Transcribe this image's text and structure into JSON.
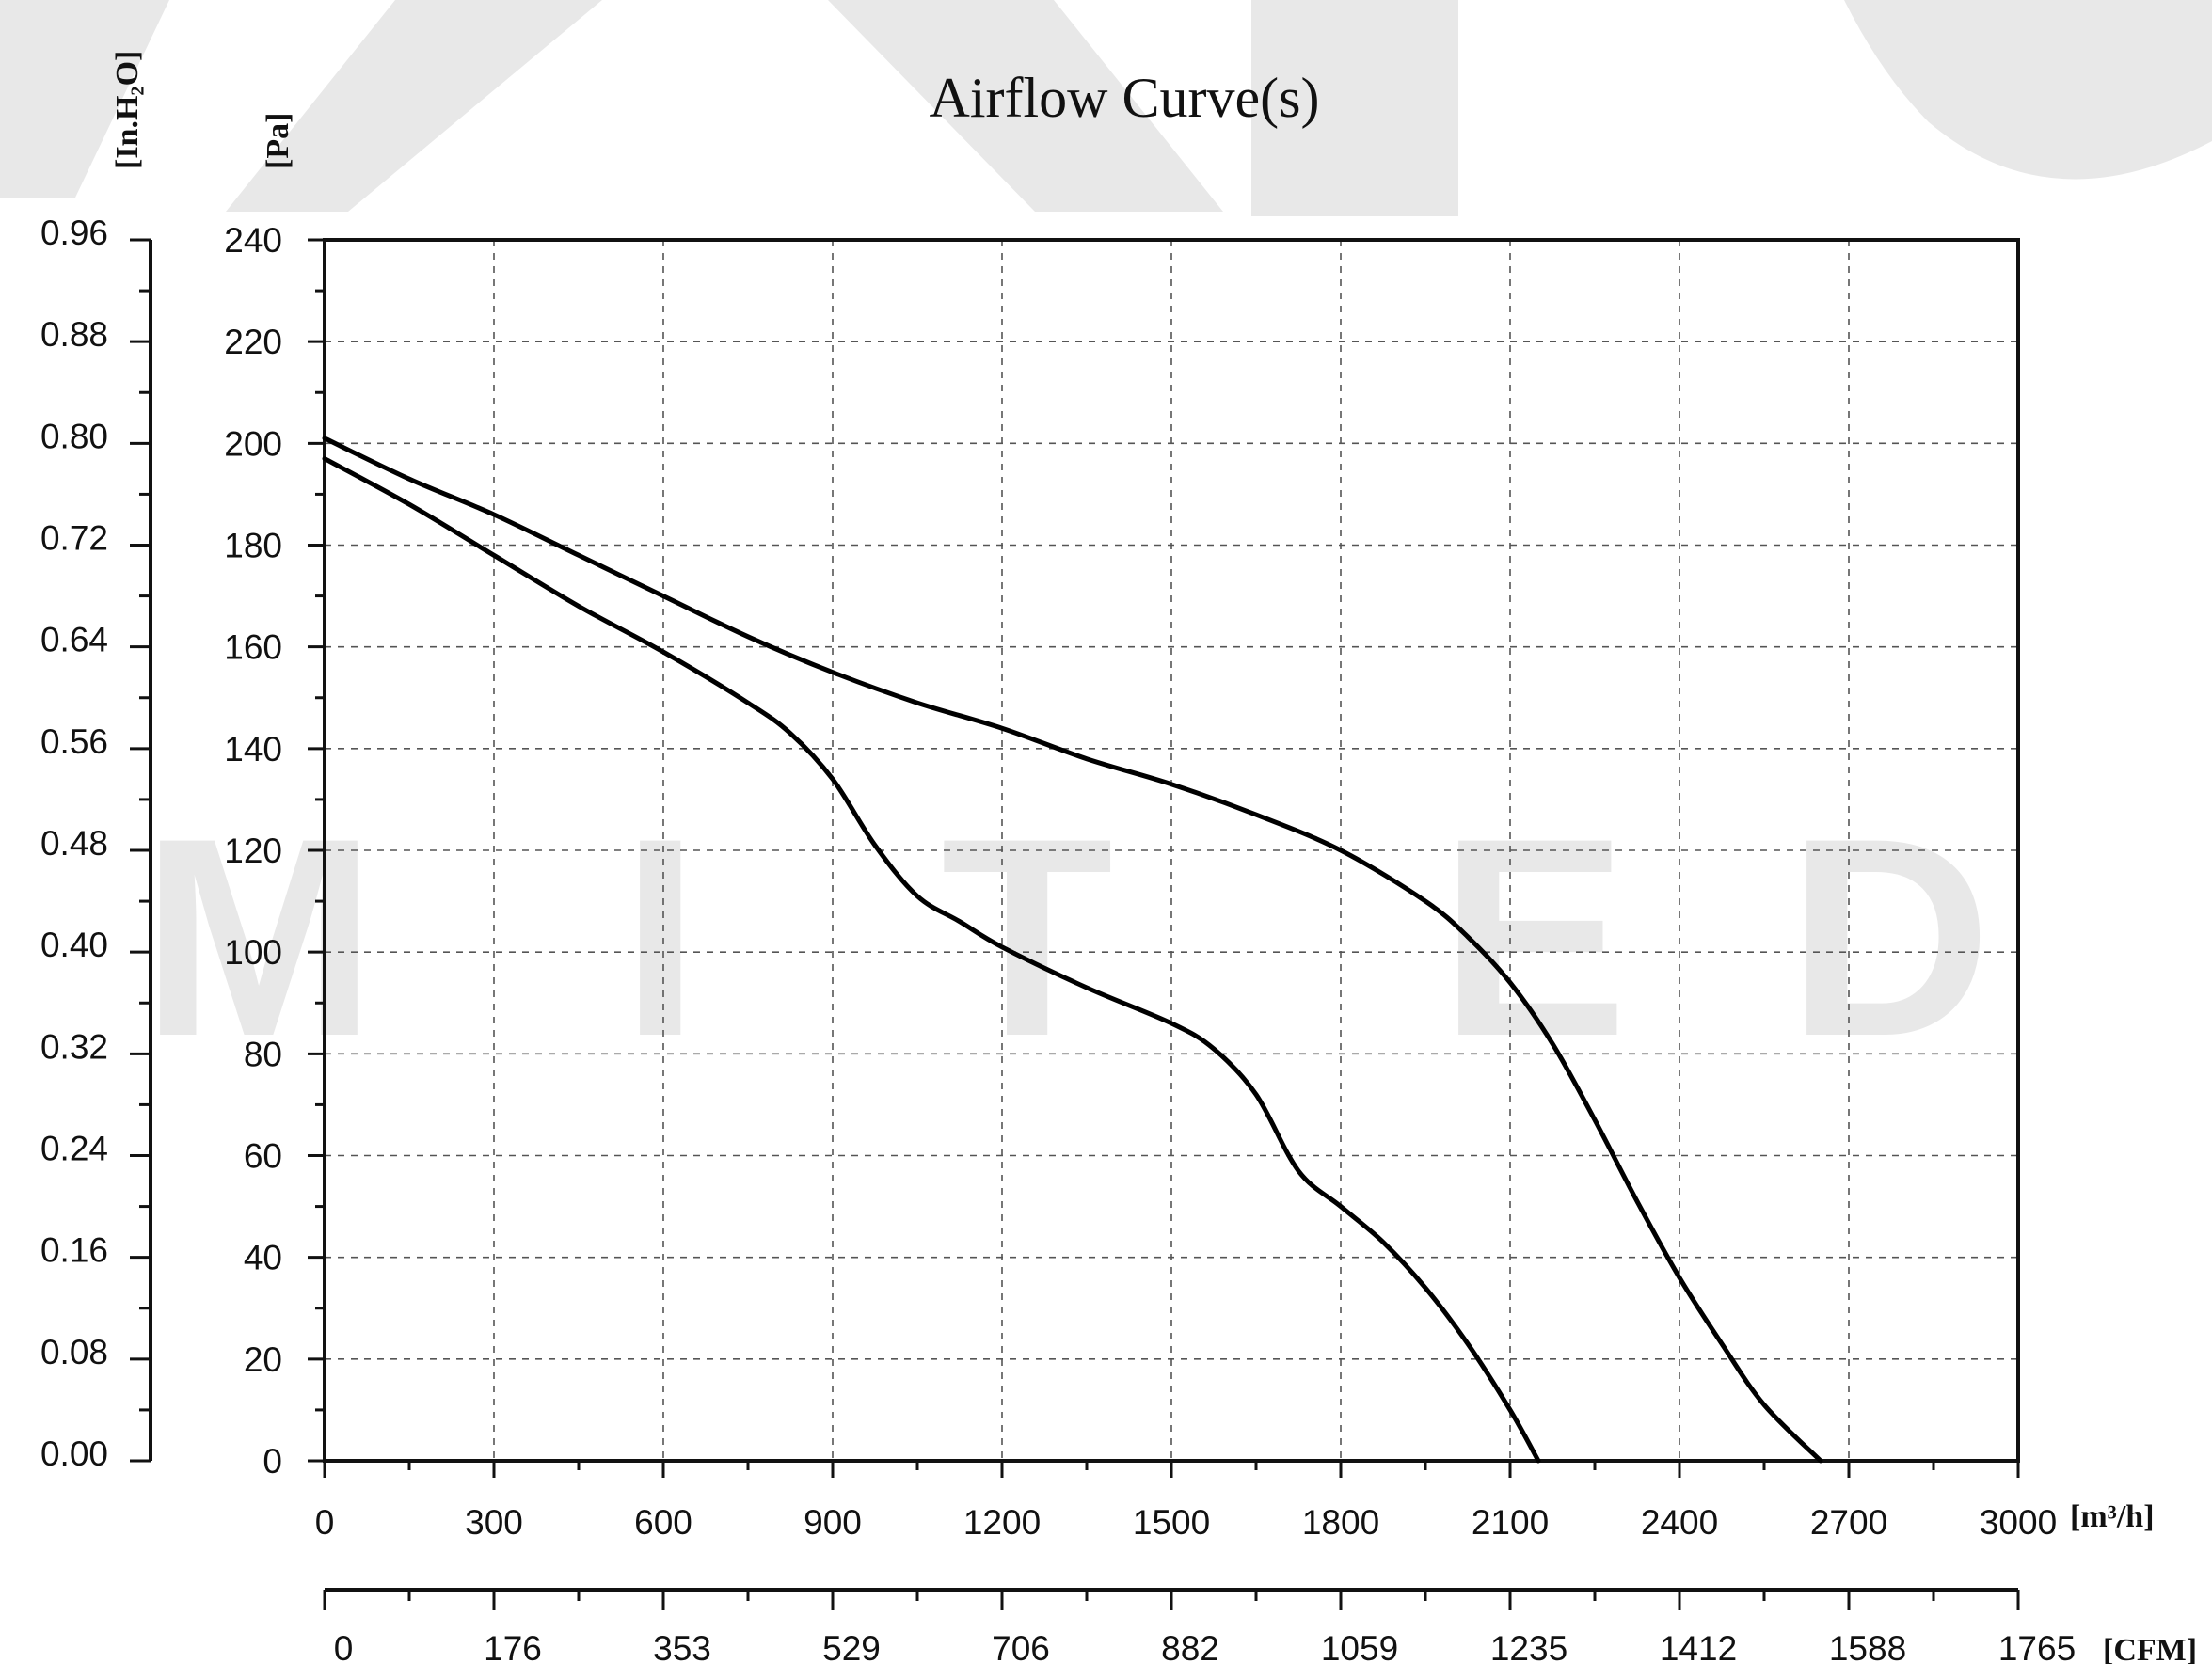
{
  "chart_data": {
    "type": "line",
    "title": "Airflow Curve(s)",
    "watermark": "MARK  M I T E D",
    "x": {
      "unit_label": "[m³/h]",
      "range": [
        0,
        3000
      ],
      "ticks": [
        0,
        300,
        600,
        900,
        1200,
        1500,
        1800,
        2100,
        2400,
        2700,
        3000
      ],
      "tick_labels": [
        "0",
        "300",
        "600",
        "900",
        "1200",
        "1500",
        "1800",
        "2100",
        "2400",
        "2700",
        "3000"
      ]
    },
    "x2": {
      "unit_label": "[CFM]",
      "range": [
        0,
        1765
      ],
      "tick_labels": [
        "0",
        "176",
        "353",
        "529",
        "706",
        "882",
        "1059",
        "1235",
        "1412",
        "1588",
        "1765"
      ]
    },
    "y": {
      "unit_label": "[Pa]",
      "range": [
        0,
        240
      ],
      "ticks": [
        0,
        20,
        40,
        60,
        80,
        100,
        120,
        140,
        160,
        180,
        200,
        220,
        240
      ],
      "tick_labels": [
        "0",
        "20",
        "40",
        "60",
        "80",
        "100",
        "120",
        "140",
        "160",
        "180",
        "200",
        "220",
        "240"
      ]
    },
    "y2": {
      "unit_label": "[In.H₂O]",
      "range": [
        0,
        0.96
      ],
      "tick_labels": [
        "0.00",
        "0.08",
        "0.16",
        "0.24",
        "0.32",
        "0.40",
        "0.48",
        "0.56",
        "0.64",
        "0.72",
        "0.80",
        "0.88",
        "0.96"
      ]
    },
    "grid": true,
    "series": [
      {
        "points": [
          [
            0,
            201
          ],
          [
            150,
            193
          ],
          [
            300,
            186
          ],
          [
            450,
            178
          ],
          [
            600,
            170
          ],
          [
            750,
            162
          ],
          [
            900,
            155
          ],
          [
            1050,
            149
          ],
          [
            1200,
            144
          ],
          [
            1350,
            138
          ],
          [
            1500,
            133
          ],
          [
            1650,
            127
          ],
          [
            1800,
            120
          ],
          [
            1950,
            110
          ],
          [
            2025,
            103
          ],
          [
            2100,
            94
          ],
          [
            2175,
            82
          ],
          [
            2250,
            67
          ],
          [
            2325,
            51
          ],
          [
            2400,
            36
          ],
          [
            2475,
            23
          ],
          [
            2550,
            11
          ],
          [
            2650,
            0
          ]
        ],
        "color": "#000000"
      },
      {
        "points": [
          [
            0,
            197
          ],
          [
            150,
            188
          ],
          [
            300,
            178
          ],
          [
            450,
            168
          ],
          [
            600,
            159
          ],
          [
            750,
            149
          ],
          [
            825,
            143
          ],
          [
            900,
            134
          ],
          [
            975,
            121
          ],
          [
            1050,
            111
          ],
          [
            1125,
            106
          ],
          [
            1200,
            101
          ],
          [
            1350,
            93
          ],
          [
            1500,
            86
          ],
          [
            1575,
            81
          ],
          [
            1650,
            72
          ],
          [
            1725,
            57
          ],
          [
            1800,
            50
          ],
          [
            1875,
            43
          ],
          [
            1950,
            34
          ],
          [
            2025,
            23
          ],
          [
            2100,
            10
          ],
          [
            2150,
            0
          ]
        ],
        "color": "#000000"
      }
    ]
  }
}
